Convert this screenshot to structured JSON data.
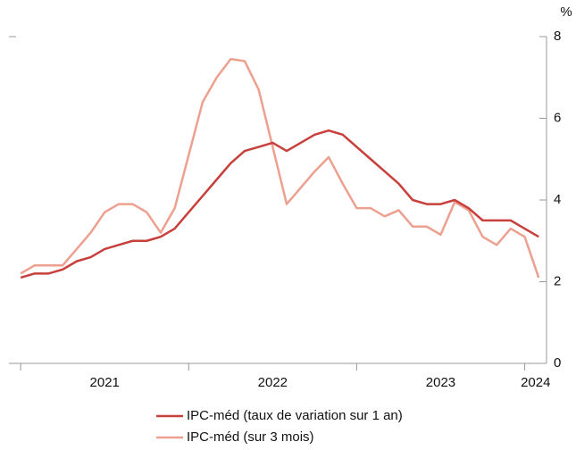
{
  "chart_data": {
    "type": "line",
    "y_unit": "%",
    "x": [
      2021,
      2021.0833,
      2021.1667,
      2021.25,
      2021.3333,
      2021.4167,
      2021.5,
      2021.5833,
      2021.6667,
      2021.75,
      2021.8333,
      2021.9167,
      2022,
      2022.0833,
      2022.1667,
      2022.25,
      2022.3333,
      2022.4167,
      2022.5,
      2022.5833,
      2022.6667,
      2022.75,
      2022.8333,
      2022.9167,
      2023,
      2023.0833,
      2023.1667,
      2023.25,
      2023.3333,
      2023.4167,
      2023.5,
      2023.5833,
      2023.6667,
      2023.75,
      2023.8333,
      2023.9167,
      2024,
      2024.0833
    ],
    "series": [
      {
        "name": "IPC-méd (taux de variation sur 1 an)",
        "color": "#c8403c",
        "values": [
          2.1,
          2.2,
          2.2,
          2.3,
          2.5,
          2.6,
          2.8,
          2.9,
          3.0,
          3.0,
          3.1,
          3.3,
          3.7,
          4.1,
          4.5,
          4.9,
          5.2,
          5.3,
          5.4,
          5.2,
          5.4,
          5.6,
          5.7,
          5.6,
          5.3,
          5.0,
          4.7,
          4.4,
          4.0,
          3.9,
          3.9,
          4.0,
          3.8,
          3.5,
          3.5,
          3.5,
          3.3,
          3.1
        ]
      },
      {
        "name": "IPC-méd (sur 3  mois)",
        "color": "#eda08f",
        "values": [
          2.2,
          2.4,
          2.4,
          2.4,
          2.8,
          3.2,
          3.7,
          3.9,
          3.9,
          3.7,
          3.2,
          3.8,
          5.1,
          6.4,
          7.0,
          7.45,
          7.4,
          6.7,
          5.3,
          3.9,
          4.3,
          4.7,
          5.05,
          4.4,
          3.8,
          3.8,
          3.6,
          3.75,
          3.35,
          3.35,
          3.15,
          3.95,
          3.75,
          3.1,
          2.9,
          3.3,
          3.1,
          2.1
        ]
      }
    ],
    "xlim": [
      2020.93,
      2024.13
    ],
    "xticks": [
      {
        "value": 2021,
        "label": "2021"
      },
      {
        "value": 2022,
        "label": "2022"
      },
      {
        "value": 2023,
        "label": "2023"
      },
      {
        "value": 2024,
        "label": "2024"
      }
    ],
    "ylim": [
      0,
      8
    ],
    "yticks": [
      0,
      2,
      4,
      6,
      8
    ],
    "y_axis_side": "right",
    "legend": "bottom"
  }
}
